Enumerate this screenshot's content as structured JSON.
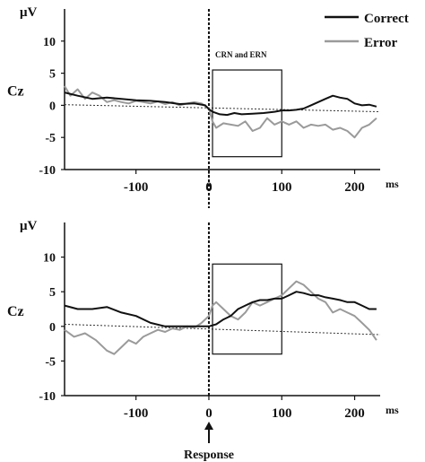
{
  "legend": {
    "position": "top-right",
    "items": [
      {
        "label": "Correct",
        "color": "#111111"
      },
      {
        "label": "Error",
        "color": "#9a9a9a"
      }
    ]
  },
  "response_marker": {
    "label": "Response",
    "symbol": "↑"
  },
  "chart_data": [
    {
      "type": "line",
      "ylabel": "μV",
      "channel_label": "Cz",
      "x_unit_label": "ms",
      "xlim": [
        -198,
        235
      ],
      "ylim": [
        -10,
        15
      ],
      "xticks": [
        -100,
        0,
        100,
        200
      ],
      "yticks": [
        10,
        5,
        0,
        -5,
        -10
      ],
      "box": {
        "label": "CRN and ERN",
        "x": [
          5,
          100
        ],
        "y": [
          -8,
          5.5
        ]
      },
      "reference_line": {
        "x": [
          -198,
          235
        ],
        "y": [
          0.1,
          -1.0
        ]
      },
      "series": [
        {
          "name": "Correct",
          "x": [
            -198,
            -180,
            -160,
            -140,
            -120,
            -100,
            -80,
            -60,
            -40,
            -20,
            -5,
            0,
            5,
            15,
            25,
            35,
            45,
            60,
            75,
            90,
            100,
            110,
            120,
            130,
            140,
            150,
            160,
            170,
            180,
            190,
            200,
            210,
            220,
            230
          ],
          "y": [
            2.0,
            1.5,
            1.0,
            1.2,
            1.0,
            0.8,
            0.7,
            0.5,
            0.2,
            0.3,
            0.0,
            -0.6,
            -1.0,
            -1.4,
            -1.5,
            -1.2,
            -1.4,
            -1.3,
            -1.2,
            -1.0,
            -0.8,
            -0.8,
            -0.7,
            -0.5,
            0.0,
            0.5,
            1.0,
            1.5,
            1.2,
            1.0,
            0.3,
            0.0,
            0.1,
            -0.2
          ]
        },
        {
          "name": "Error",
          "x": [
            -198,
            -190,
            -180,
            -170,
            -160,
            -150,
            -140,
            -130,
            -120,
            -110,
            -100,
            -90,
            -80,
            -70,
            -60,
            -50,
            -40,
            -30,
            -20,
            -10,
            0,
            5,
            10,
            20,
            30,
            40,
            50,
            60,
            70,
            80,
            90,
            100,
            110,
            120,
            130,
            140,
            150,
            160,
            170,
            180,
            190,
            200,
            210,
            220,
            230
          ],
          "y": [
            3.0,
            1.5,
            2.5,
            1.0,
            2.0,
            1.5,
            0.5,
            0.8,
            0.5,
            0.3,
            0.7,
            0.5,
            0.3,
            0.6,
            0.2,
            0.5,
            0.0,
            0.3,
            0.5,
            0.3,
            -0.5,
            -2.5,
            -3.5,
            -2.8,
            -3.0,
            -3.2,
            -2.5,
            -4.0,
            -3.5,
            -2.0,
            -3.0,
            -2.5,
            -3.0,
            -2.5,
            -3.5,
            -3.0,
            -3.2,
            -3.0,
            -3.8,
            -3.5,
            -4.0,
            -5.0,
            -3.5,
            -3.0,
            -2.0
          ]
        }
      ]
    },
    {
      "type": "line",
      "ylabel": "μV",
      "channel_label": "Cz",
      "x_unit_label": "ms",
      "xlim": [
        -198,
        235
      ],
      "ylim": [
        -10,
        15
      ],
      "xticks": [
        -100,
        0,
        100,
        200
      ],
      "yticks": [
        10,
        5,
        0,
        -5,
        -10
      ],
      "box": {
        "label": "",
        "x": [
          5,
          100
        ],
        "y": [
          -4,
          9
        ]
      },
      "reference_line": {
        "x": [
          -198,
          235
        ],
        "y": [
          0.3,
          -1.2
        ]
      },
      "series": [
        {
          "name": "Correct",
          "x": [
            -198,
            -180,
            -160,
            -140,
            -120,
            -100,
            -80,
            -60,
            -40,
            -20,
            0,
            10,
            20,
            30,
            40,
            50,
            60,
            70,
            80,
            90,
            100,
            110,
            120,
            130,
            140,
            150,
            160,
            170,
            180,
            190,
            200,
            210,
            220,
            230
          ],
          "y": [
            3.0,
            2.5,
            2.5,
            2.8,
            2.0,
            1.5,
            0.5,
            0.0,
            0.0,
            0.0,
            0.0,
            0.3,
            1.0,
            1.5,
            2.5,
            3.0,
            3.5,
            3.8,
            3.8,
            4.0,
            4.0,
            4.5,
            5.0,
            4.8,
            4.5,
            4.5,
            4.2,
            4.0,
            3.8,
            3.5,
            3.5,
            3.0,
            2.5,
            2.5
          ]
        },
        {
          "name": "Error",
          "x": [
            -198,
            -185,
            -170,
            -155,
            -140,
            -130,
            -120,
            -110,
            -100,
            -90,
            -80,
            -70,
            -60,
            -50,
            -40,
            -30,
            -20,
            -10,
            0,
            5,
            10,
            20,
            30,
            40,
            50,
            60,
            70,
            80,
            90,
            100,
            110,
            120,
            130,
            140,
            150,
            160,
            170,
            180,
            190,
            200,
            210,
            220,
            230
          ],
          "y": [
            -0.5,
            -1.5,
            -1.0,
            -2.0,
            -3.5,
            -4.0,
            -3.0,
            -2.0,
            -2.5,
            -1.5,
            -1.0,
            -0.5,
            -0.8,
            -0.3,
            -0.5,
            0.0,
            -0.2,
            0.5,
            1.5,
            3.0,
            3.5,
            2.5,
            1.5,
            1.0,
            2.0,
            3.5,
            3.0,
            3.5,
            4.0,
            4.5,
            5.5,
            6.5,
            6.0,
            5.0,
            4.0,
            3.5,
            2.0,
            2.5,
            2.0,
            1.5,
            0.5,
            -0.5,
            -2.0
          ]
        }
      ]
    }
  ]
}
